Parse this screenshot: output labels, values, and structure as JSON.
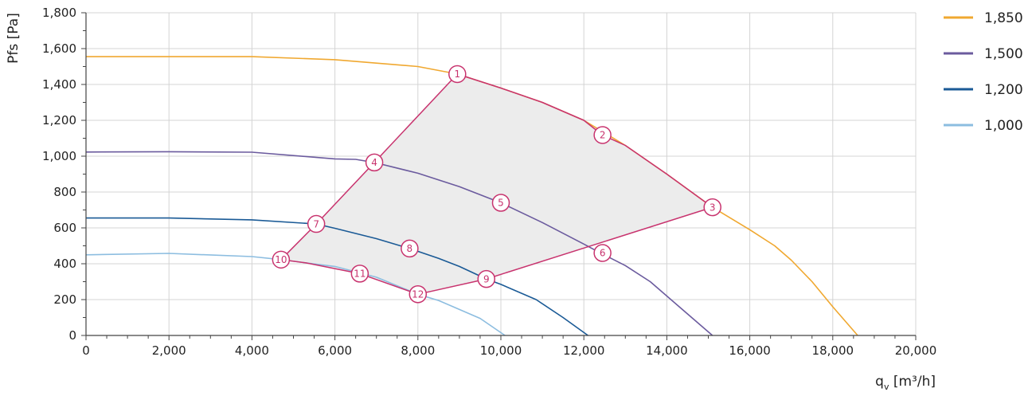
{
  "chart_data": {
    "type": "line",
    "xlabel": "q",
    "xlabel_sub": "v",
    "xlabel_unit": " [m³/h]",
    "ylabel": "Pfs [Pa]",
    "xlim": [
      0,
      20000
    ],
    "ylim": [
      0,
      1800
    ],
    "x_ticks": [
      0,
      2000,
      4000,
      6000,
      8000,
      10000,
      12000,
      14000,
      16000,
      18000,
      20000
    ],
    "x_tick_labels": [
      "0",
      "2,000",
      "4,000",
      "6,000",
      "8,000",
      "10,000",
      "12,000",
      "14,000",
      "16,000",
      "18,000",
      "20,000"
    ],
    "y_ticks": [
      0,
      200,
      400,
      600,
      800,
      1000,
      1200,
      1400,
      1600,
      1800
    ],
    "y_tick_labels": [
      "0",
      "200",
      "400",
      "600",
      "800",
      "1,000",
      "1,200",
      "1,400",
      "1,600",
      "1,800"
    ],
    "grid": true,
    "legend_position": "right",
    "series": [
      {
        "name": "1,850",
        "color": "#f0a830",
        "points": [
          [
            0,
            1555
          ],
          [
            2000,
            1555
          ],
          [
            4000,
            1555
          ],
          [
            6000,
            1538
          ],
          [
            8000,
            1500
          ],
          [
            8950,
            1458
          ],
          [
            10000,
            1380
          ],
          [
            11000,
            1300
          ],
          [
            12000,
            1200
          ],
          [
            13000,
            1060
          ],
          [
            14000,
            900
          ],
          [
            15100,
            715
          ],
          [
            16000,
            590
          ],
          [
            16600,
            500
          ],
          [
            17000,
            420
          ],
          [
            17500,
            300
          ],
          [
            18000,
            160
          ],
          [
            18600,
            0
          ]
        ]
      },
      {
        "name": "1,500",
        "color": "#6b5b9e",
        "points": [
          [
            0,
            1023
          ],
          [
            2000,
            1025
          ],
          [
            4000,
            1022
          ],
          [
            6000,
            985
          ],
          [
            6500,
            982
          ],
          [
            6950,
            965
          ],
          [
            8000,
            905
          ],
          [
            9000,
            830
          ],
          [
            10000,
            740
          ],
          [
            11000,
            630
          ],
          [
            12000,
            510
          ],
          [
            12400,
            460
          ],
          [
            13000,
            390
          ],
          [
            13600,
            300
          ],
          [
            14300,
            160
          ],
          [
            15100,
            0
          ]
        ]
      },
      {
        "name": "1,200",
        "color": "#1a5a96",
        "points": [
          [
            0,
            655
          ],
          [
            2000,
            655
          ],
          [
            4000,
            645
          ],
          [
            5550,
            622
          ],
          [
            6000,
            598
          ],
          [
            7000,
            540
          ],
          [
            7800,
            485
          ],
          [
            8500,
            430
          ],
          [
            9000,
            385
          ],
          [
            9650,
            315
          ],
          [
            10000,
            285
          ],
          [
            10850,
            200
          ],
          [
            11500,
            100
          ],
          [
            12100,
            0
          ]
        ]
      },
      {
        "name": "1,000",
        "color": "#8cbde0",
        "points": [
          [
            0,
            450
          ],
          [
            2000,
            458
          ],
          [
            4000,
            440
          ],
          [
            4700,
            423
          ],
          [
            5300,
            405
          ],
          [
            6000,
            385
          ],
          [
            7000,
            325
          ],
          [
            8000,
            230
          ],
          [
            8500,
            195
          ],
          [
            9500,
            95
          ],
          [
            10100,
            0
          ]
        ]
      }
    ],
    "operating_points": [
      {
        "label": "1",
        "x": 8950,
        "y": 1458
      },
      {
        "label": "2",
        "x": 12450,
        "y": 1118
      },
      {
        "label": "3",
        "x": 15100,
        "y": 715
      },
      {
        "label": "4",
        "x": 6950,
        "y": 965
      },
      {
        "label": "5",
        "x": 10000,
        "y": 740
      },
      {
        "label": "6",
        "x": 12450,
        "y": 460
      },
      {
        "label": "7",
        "x": 5550,
        "y": 622
      },
      {
        "label": "8",
        "x": 7800,
        "y": 485
      },
      {
        "label": "9",
        "x": 9650,
        "y": 315
      },
      {
        "label": "10",
        "x": 4700,
        "y": 423
      },
      {
        "label": "11",
        "x": 6600,
        "y": 345
      },
      {
        "label": "12",
        "x": 8000,
        "y": 230
      }
    ],
    "boundary_color": "#c8336e",
    "region_fill": "#ececec",
    "region_boundary": [
      [
        4700,
        423
      ],
      [
        5550,
        622
      ],
      [
        6950,
        965
      ],
      [
        8950,
        1458
      ],
      [
        10000,
        1380
      ],
      [
        11000,
        1300
      ],
      [
        12000,
        1200
      ],
      [
        12450,
        1118
      ],
      [
        13000,
        1060
      ],
      [
        14000,
        900
      ],
      [
        15100,
        715
      ],
      [
        9650,
        315
      ],
      [
        8000,
        230
      ],
      [
        6600,
        345
      ],
      [
        5300,
        405
      ],
      [
        4700,
        423
      ]
    ]
  }
}
